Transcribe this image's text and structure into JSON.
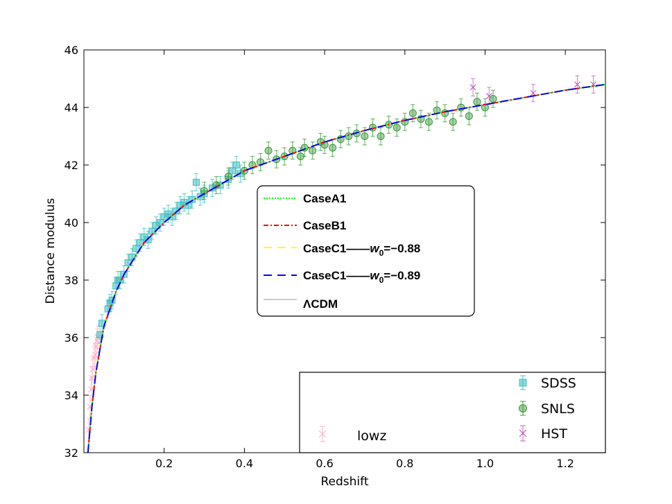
{
  "chart_data": {
    "type": "scatter",
    "xlabel": "Redshift",
    "ylabel": "Distance modulus",
    "xlim": [
      0.0,
      1.3
    ],
    "ylim": [
      32,
      46
    ],
    "x_ticks": [
      0.2,
      0.4,
      0.6,
      0.8,
      1.0,
      1.2
    ],
    "x_tick_labels": [
      "0.2",
      "0.4",
      "0.6",
      "0.8",
      "1.0",
      "1.2"
    ],
    "y_ticks": [
      32,
      34,
      36,
      38,
      40,
      42,
      44,
      46
    ],
    "y_tick_labels": [
      "32",
      "34",
      "36",
      "38",
      "40",
      "42",
      "44",
      "46"
    ],
    "grid": false,
    "model_curve_points": [
      {
        "z": 0.01,
        "mu": 32.0
      },
      {
        "z": 0.02,
        "mu": 33.6
      },
      {
        "z": 0.03,
        "mu": 34.8
      },
      {
        "z": 0.05,
        "mu": 36.4
      },
      {
        "z": 0.08,
        "mu": 37.6
      },
      {
        "z": 0.1,
        "mu": 38.2
      },
      {
        "z": 0.15,
        "mu": 39.3
      },
      {
        "z": 0.2,
        "mu": 40.0
      },
      {
        "z": 0.25,
        "mu": 40.6
      },
      {
        "z": 0.3,
        "mu": 41.0
      },
      {
        "z": 0.35,
        "mu": 41.4
      },
      {
        "z": 0.4,
        "mu": 41.8
      },
      {
        "z": 0.5,
        "mu": 42.3
      },
      {
        "z": 0.6,
        "mu": 42.8
      },
      {
        "z": 0.7,
        "mu": 43.2
      },
      {
        "z": 0.8,
        "mu": 43.55
      },
      {
        "z": 0.9,
        "mu": 43.85
      },
      {
        "z": 1.0,
        "mu": 44.1
      },
      {
        "z": 1.1,
        "mu": 44.35
      },
      {
        "z": 1.2,
        "mu": 44.6
      },
      {
        "z": 1.3,
        "mu": 44.8
      }
    ],
    "series": [
      {
        "name": "CaseA1",
        "kind": "line",
        "style": "dotted",
        "color": "#00ff00"
      },
      {
        "name": "CaseB1",
        "kind": "line",
        "style": "dashdot",
        "color": "#ff0000"
      },
      {
        "name": "CaseC1——w0=−0.88",
        "kind": "line",
        "style": "dashed",
        "color": "#ffff00",
        "label_main": "CaseC1——",
        "label_w": "w",
        "label_sub": "0",
        "label_val": "=−0.88"
      },
      {
        "name": "CaseC1——w0=−0.89",
        "kind": "line",
        "style": "dashed",
        "color": "#0000ff",
        "label_main": "CaseC1——",
        "label_w": "w",
        "label_sub": "0",
        "label_val": "=−0.89"
      },
      {
        "name": "ΛCDM",
        "kind": "line",
        "style": "solid",
        "color": "#999999"
      },
      {
        "name": "SDSS",
        "kind": "errorbar",
        "marker": "square",
        "color": "#40c0c0",
        "points": [
          [
            0.04,
            36.1,
            0.3
          ],
          [
            0.045,
            36.5,
            0.3
          ],
          [
            0.06,
            37.0,
            0.3
          ],
          [
            0.065,
            37.2,
            0.3
          ],
          [
            0.07,
            37.3,
            0.3
          ],
          [
            0.08,
            37.8,
            0.3
          ],
          [
            0.085,
            38.0,
            0.3
          ],
          [
            0.09,
            38.0,
            0.3
          ],
          [
            0.1,
            38.2,
            0.3
          ],
          [
            0.11,
            38.6,
            0.3
          ],
          [
            0.12,
            38.8,
            0.3
          ],
          [
            0.13,
            39.1,
            0.3
          ],
          [
            0.14,
            39.3,
            0.3
          ],
          [
            0.15,
            39.5,
            0.3
          ],
          [
            0.16,
            39.4,
            0.3
          ],
          [
            0.17,
            39.7,
            0.3
          ],
          [
            0.18,
            39.9,
            0.3
          ],
          [
            0.19,
            40.0,
            0.3
          ],
          [
            0.2,
            40.2,
            0.3
          ],
          [
            0.21,
            40.3,
            0.3
          ],
          [
            0.22,
            40.2,
            0.3
          ],
          [
            0.23,
            40.4,
            0.3
          ],
          [
            0.24,
            40.6,
            0.3
          ],
          [
            0.25,
            40.7,
            0.3
          ],
          [
            0.26,
            40.6,
            0.3
          ],
          [
            0.27,
            40.8,
            0.3
          ],
          [
            0.28,
            41.4,
            0.3
          ],
          [
            0.29,
            40.9,
            0.3
          ],
          [
            0.3,
            41.0,
            0.3
          ],
          [
            0.32,
            41.2,
            0.3
          ],
          [
            0.34,
            41.3,
            0.3
          ],
          [
            0.36,
            41.5,
            0.3
          ],
          [
            0.37,
            41.8,
            0.3
          ],
          [
            0.38,
            42.0,
            0.3
          ],
          [
            0.39,
            41.7,
            0.3
          ]
        ]
      },
      {
        "name": "SNLS",
        "kind": "errorbar",
        "marker": "circle",
        "color": "#3a9a3a",
        "points": [
          [
            0.3,
            41.1,
            0.3
          ],
          [
            0.33,
            41.3,
            0.3
          ],
          [
            0.36,
            41.6,
            0.3
          ],
          [
            0.4,
            41.8,
            0.3
          ],
          [
            0.42,
            42.0,
            0.3
          ],
          [
            0.44,
            42.1,
            0.3
          ],
          [
            0.46,
            42.5,
            0.3
          ],
          [
            0.48,
            42.2,
            0.3
          ],
          [
            0.5,
            42.3,
            0.3
          ],
          [
            0.52,
            42.5,
            0.3
          ],
          [
            0.54,
            42.3,
            0.3
          ],
          [
            0.55,
            42.6,
            0.3
          ],
          [
            0.57,
            42.5,
            0.3
          ],
          [
            0.59,
            42.8,
            0.3
          ],
          [
            0.6,
            42.7,
            0.3
          ],
          [
            0.62,
            42.6,
            0.3
          ],
          [
            0.64,
            42.9,
            0.3
          ],
          [
            0.66,
            43.0,
            0.3
          ],
          [
            0.68,
            43.1,
            0.3
          ],
          [
            0.7,
            43.0,
            0.3
          ],
          [
            0.72,
            43.3,
            0.3
          ],
          [
            0.74,
            43.0,
            0.3
          ],
          [
            0.76,
            43.4,
            0.3
          ],
          [
            0.78,
            43.3,
            0.3
          ],
          [
            0.8,
            43.5,
            0.3
          ],
          [
            0.82,
            43.8,
            0.3
          ],
          [
            0.84,
            43.6,
            0.3
          ],
          [
            0.86,
            43.5,
            0.3
          ],
          [
            0.88,
            43.9,
            0.3
          ],
          [
            0.9,
            43.8,
            0.3
          ],
          [
            0.92,
            43.5,
            0.3
          ],
          [
            0.94,
            44.0,
            0.3
          ],
          [
            0.96,
            43.7,
            0.3
          ],
          [
            0.98,
            44.2,
            0.3
          ],
          [
            1.0,
            44.0,
            0.3
          ],
          [
            1.02,
            44.3,
            0.3
          ]
        ]
      },
      {
        "name": "HST",
        "kind": "errorbar",
        "marker": "x",
        "color": "#c060c0",
        "points": [
          [
            0.97,
            44.7,
            0.3
          ],
          [
            1.01,
            44.4,
            0.3
          ],
          [
            1.12,
            44.5,
            0.3
          ],
          [
            1.23,
            44.8,
            0.3
          ],
          [
            1.27,
            44.8,
            0.3
          ]
        ]
      },
      {
        "name": "lowz",
        "kind": "errorbar",
        "marker": "x",
        "color": "#ffb6c8",
        "points": [
          [
            0.012,
            32.8,
            0.4
          ],
          [
            0.015,
            33.6,
            0.4
          ],
          [
            0.018,
            34.2,
            0.4
          ],
          [
            0.02,
            34.6,
            0.4
          ],
          [
            0.022,
            34.9,
            0.4
          ],
          [
            0.025,
            35.3,
            0.4
          ],
          [
            0.028,
            35.4,
            0.4
          ],
          [
            0.03,
            35.7,
            0.4
          ],
          [
            0.033,
            35.9,
            0.4
          ],
          [
            0.035,
            36.0,
            0.4
          ]
        ]
      }
    ]
  }
}
